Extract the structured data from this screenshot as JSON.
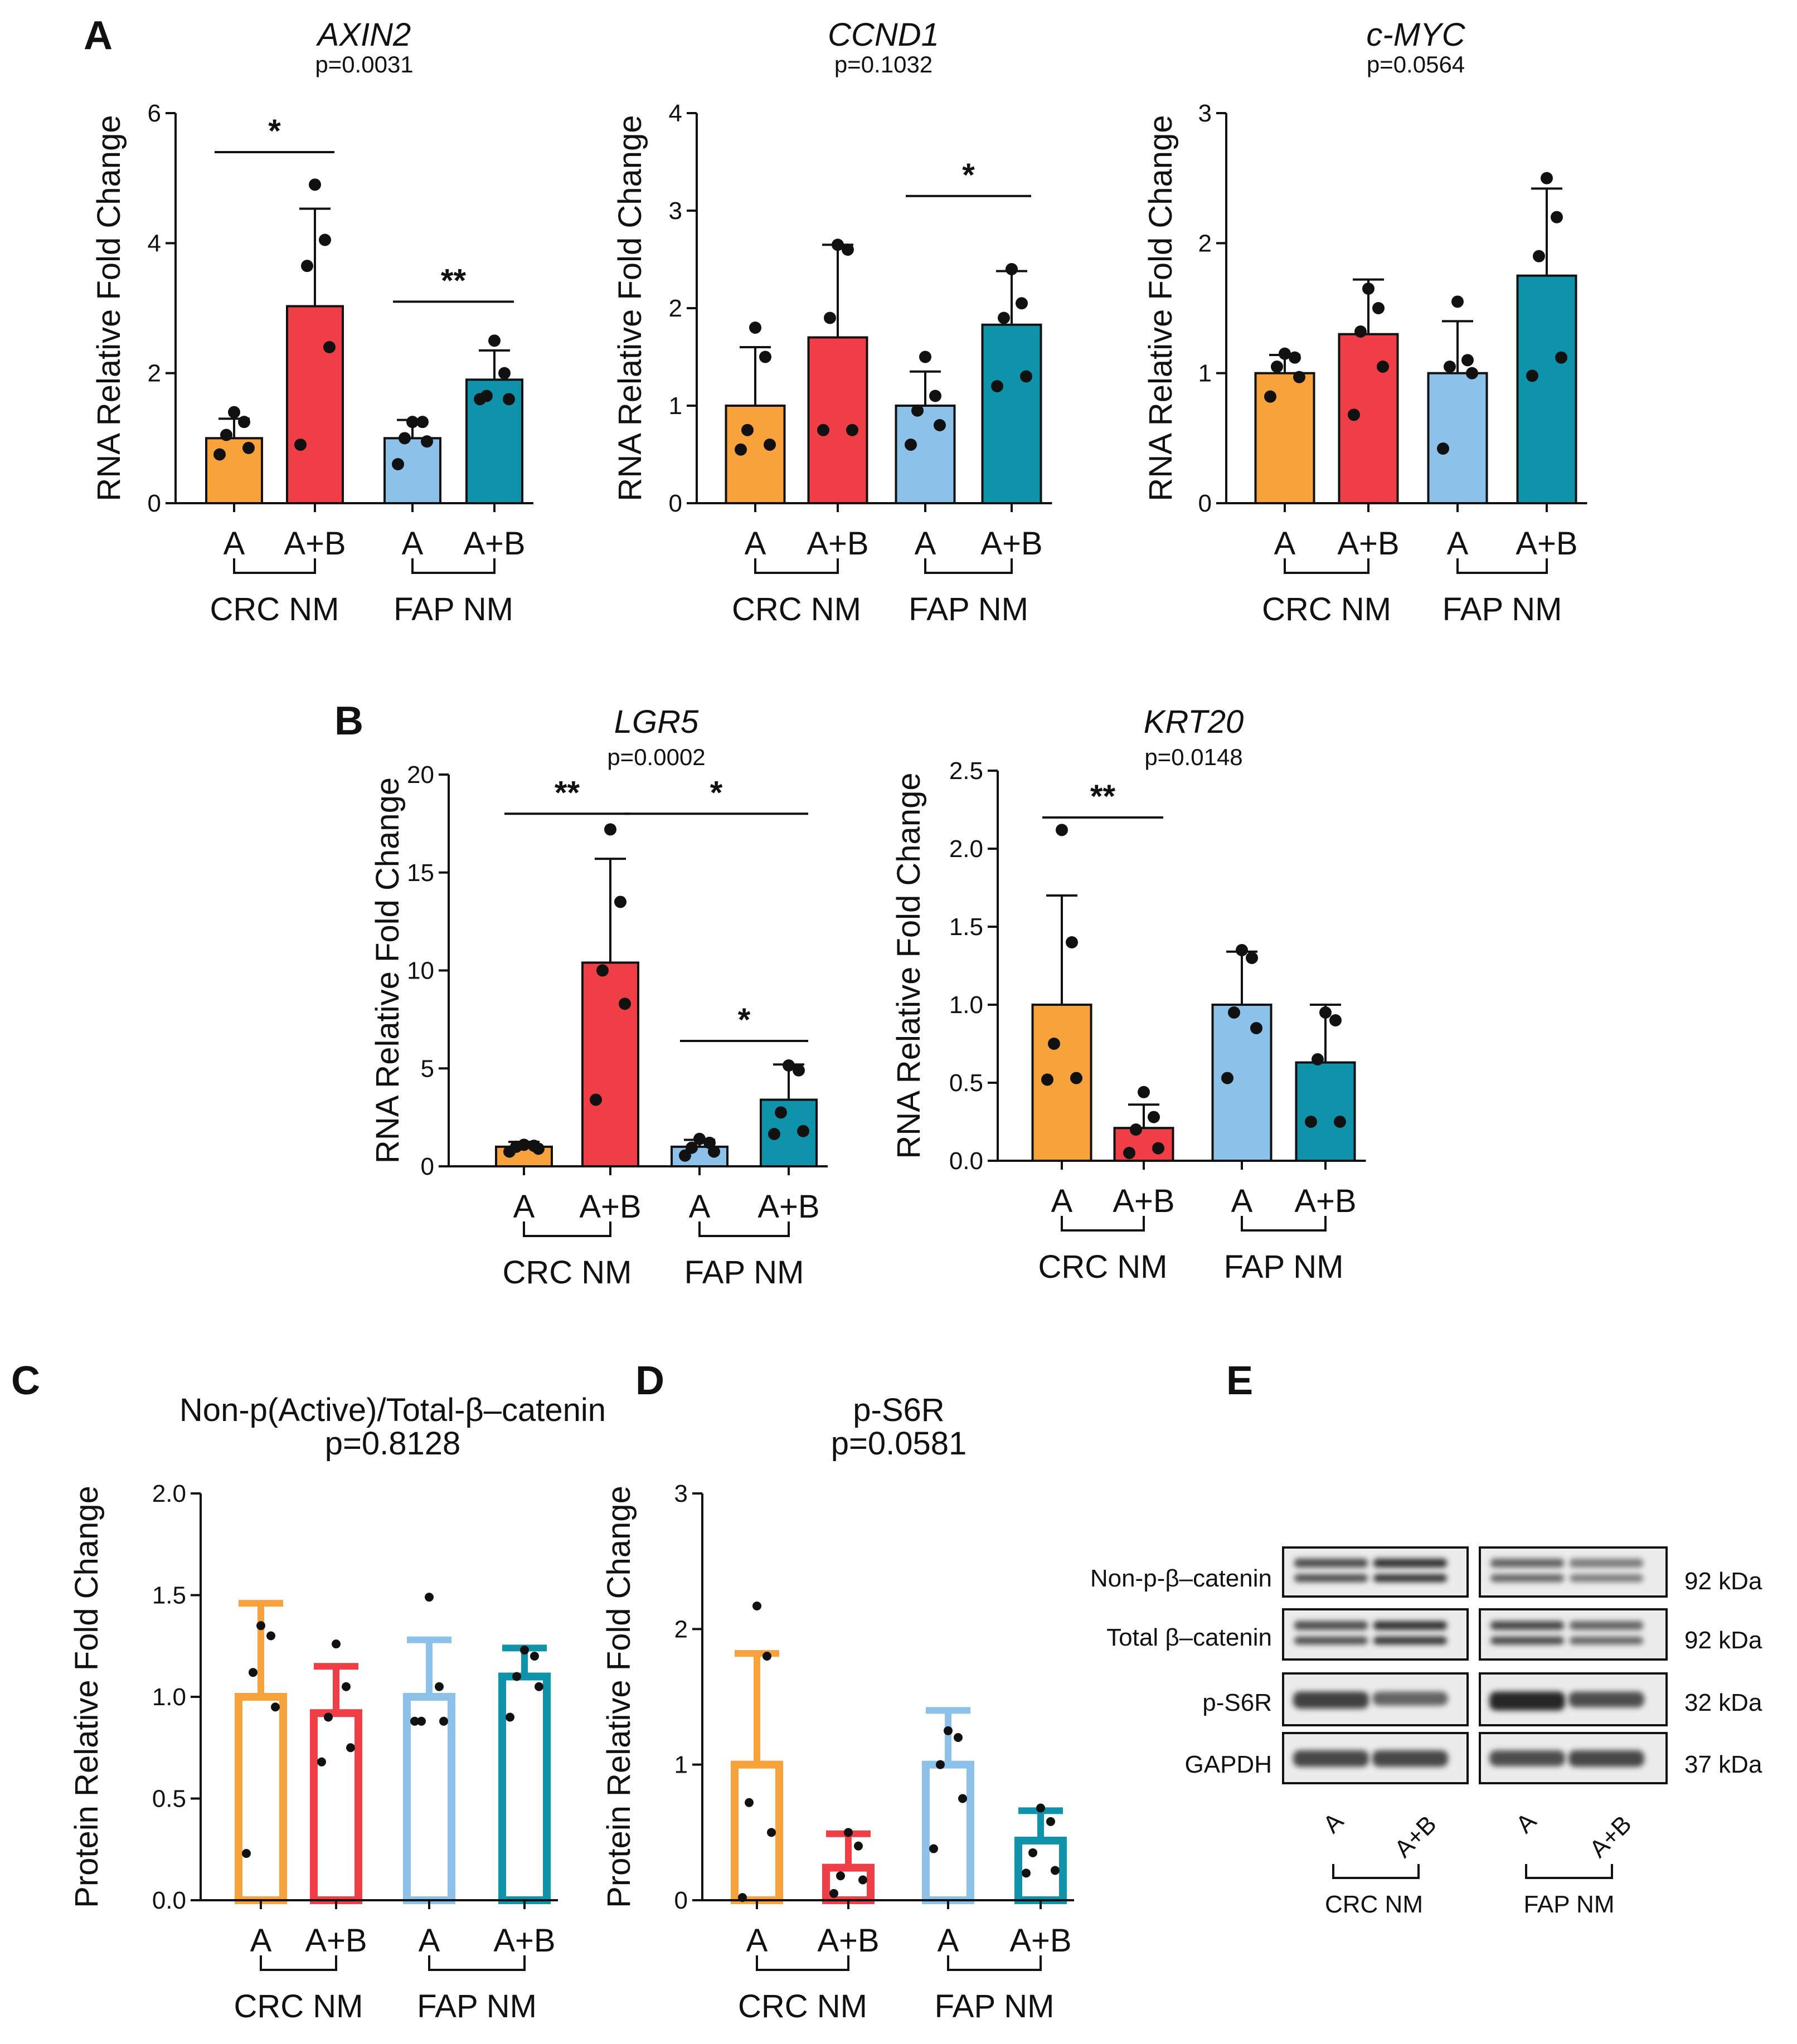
{
  "panel_letters": [
    "A",
    "B",
    "C",
    "D",
    "E"
  ],
  "colors": {
    "orange": "#F7A23B",
    "red": "#EF3E45",
    "lightblue": "#8CC2EA",
    "teal": "#0E93AA",
    "black": "#000000"
  },
  "chart_data": [
    {
      "id": "axin2",
      "type": "bar",
      "panel": "A",
      "title": "AXIN2",
      "pvalue": "p=0.0031",
      "ylabel": "RNA Relative Fold Change",
      "ylim": [
        0,
        6
      ],
      "yticks": [
        "0",
        "2",
        "4",
        "6"
      ],
      "categories": [
        "A",
        "A+B",
        "A",
        "A+B"
      ],
      "groups": [
        "CRC NM",
        "FAP NM"
      ],
      "values": [
        1.0,
        3.03,
        1.0,
        1.9
      ],
      "errors": [
        0.3,
        1.5,
        0.28,
        0.45
      ],
      "points": [
        [
          0.75,
          0.85,
          1.05,
          1.25,
          1.4
        ],
        [
          0.9,
          2.4,
          3.65,
          4.05,
          4.9
        ],
        [
          0.6,
          0.95,
          1.0,
          1.25,
          1.25
        ],
        [
          1.6,
          1.6,
          1.65,
          2.0,
          2.5
        ]
      ],
      "significance": [
        {
          "from": 0,
          "to": 1,
          "y": 5.4,
          "label": "*"
        },
        {
          "from": 2,
          "to": 3,
          "y": 3.1,
          "label": "**"
        }
      ]
    },
    {
      "id": "ccnd1",
      "type": "bar",
      "panel": "A",
      "title": "CCND1",
      "pvalue": "p=0.1032",
      "ylabel": "RNA Relative Fold Change",
      "ylim": [
        0,
        4
      ],
      "yticks": [
        "0",
        "1",
        "2",
        "3",
        "4"
      ],
      "categories": [
        "A",
        "A+B",
        "A",
        "A+B"
      ],
      "groups": [
        "CRC NM",
        "FAP NM"
      ],
      "values": [
        1.0,
        1.7,
        1.0,
        1.83
      ],
      "errors": [
        0.6,
        0.95,
        0.35,
        0.55
      ],
      "points": [
        [
          0.55,
          0.6,
          0.75,
          1.5,
          1.8
        ],
        [
          0.75,
          0.75,
          1.9,
          2.6,
          2.65
        ],
        [
          0.6,
          0.8,
          0.95,
          1.1,
          1.5
        ],
        [
          1.2,
          1.3,
          1.9,
          2.05,
          2.4
        ]
      ],
      "significance": [
        {
          "from": 2,
          "to": 3,
          "y": 3.15,
          "label": "*"
        }
      ]
    },
    {
      "id": "cmyc",
      "type": "bar",
      "panel": "A",
      "title": "c-MYC",
      "pvalue": "p=0.0564",
      "ylabel": "RNA Relative Fold Change",
      "ylim": [
        0,
        3
      ],
      "yticks": [
        "0",
        "1",
        "2",
        "3"
      ],
      "categories": [
        "A",
        "A+B",
        "A",
        "A+B"
      ],
      "groups": [
        "CRC NM",
        "FAP NM"
      ],
      "values": [
        1.0,
        1.3,
        1.0,
        1.75
      ],
      "errors": [
        0.14,
        0.42,
        0.4,
        0.67
      ],
      "points": [
        [
          0.82,
          0.97,
          1.05,
          1.12,
          1.15
        ],
        [
          0.68,
          1.05,
          1.32,
          1.5,
          1.65
        ],
        [
          0.42,
          1.0,
          1.05,
          1.1,
          1.55
        ],
        [
          0.98,
          1.12,
          1.9,
          2.2,
          2.5
        ]
      ],
      "significance": []
    },
    {
      "id": "lgr5",
      "type": "bar",
      "panel": "B",
      "title": "LGR5",
      "pvalue": "p=0.0002",
      "ylabel": "RNA Relative Fold Change",
      "ylim": [
        0,
        20
      ],
      "yticks": [
        "0",
        "5",
        "10",
        "15",
        "20"
      ],
      "categories": [
        "A",
        "A+B",
        "A",
        "A+B"
      ],
      "groups": [
        "CRC NM",
        "FAP NM"
      ],
      "values": [
        1.0,
        10.4,
        1.0,
        3.4
      ],
      "errors": [
        0.25,
        5.3,
        0.35,
        1.8
      ],
      "points": [
        [
          0.75,
          0.9,
          1.0,
          1.05,
          1.1
        ],
        [
          3.4,
          8.3,
          10.0,
          13.5,
          17.2
        ],
        [
          0.55,
          0.75,
          0.95,
          1.2,
          1.4
        ],
        [
          1.65,
          1.8,
          2.75,
          4.9,
          5.15
        ]
      ],
      "significance": [
        {
          "from": 0,
          "to": 1,
          "y": 18.0,
          "label": "**"
        },
        {
          "from": 1,
          "to": 3,
          "y": 18.0,
          "label": "*"
        },
        {
          "from": 2,
          "to": 3,
          "y": 6.4,
          "label": "*"
        }
      ]
    },
    {
      "id": "krt20",
      "type": "bar",
      "panel": "B",
      "title": "KRT20",
      "pvalue": "p=0.0148",
      "ylabel": "RNA Relative Fold Change",
      "ylim": [
        0,
        2.5
      ],
      "yticks": [
        "0.0",
        "0.5",
        "1.0",
        "1.5",
        "2.0",
        "2.5"
      ],
      "categories": [
        "A",
        "A+B",
        "A",
        "A+B"
      ],
      "groups": [
        "CRC NM",
        "FAP NM"
      ],
      "values": [
        1.0,
        0.21,
        1.0,
        0.63
      ],
      "errors": [
        0.7,
        0.15,
        0.34,
        0.37
      ],
      "points": [
        [
          0.52,
          0.53,
          0.75,
          1.4,
          2.12
        ],
        [
          0.05,
          0.08,
          0.2,
          0.28,
          0.44
        ],
        [
          0.53,
          0.85,
          0.95,
          1.3,
          1.35
        ],
        [
          0.25,
          0.25,
          0.65,
          0.9,
          0.95
        ]
      ],
      "significance": [
        {
          "from": 0,
          "to": 1,
          "y": 2.2,
          "label": "**"
        }
      ]
    },
    {
      "id": "catenin",
      "type": "bar",
      "panel": "C",
      "title": "Non-p(Active)/Total-β–catenin",
      "pvalue": "p=0.8128",
      "ylabel": "Protein Relative Fold Change",
      "ylim": [
        0,
        2.0
      ],
      "yticks": [
        "0.0",
        "0.5",
        "1.0",
        "1.5",
        "2.0"
      ],
      "categories": [
        "A",
        "A+B",
        "A",
        "A+B"
      ],
      "groups": [
        "CRC NM",
        "FAP NM"
      ],
      "values": [
        1.0,
        0.92,
        1.0,
        1.1
      ],
      "errors": [
        0.46,
        0.23,
        0.28,
        0.14
      ],
      "points": [
        [
          0.23,
          0.95,
          1.12,
          1.3,
          1.35
        ],
        [
          0.68,
          0.75,
          0.9,
          1.05,
          1.26
        ],
        [
          0.88,
          0.88,
          0.88,
          1.05,
          1.49
        ],
        [
          0.9,
          1.05,
          1.1,
          1.2,
          1.23
        ]
      ],
      "significance": []
    },
    {
      "id": "ps6r",
      "type": "bar",
      "panel": "D",
      "title": "p-S6R",
      "pvalue": "p=0.0581",
      "ylabel": "Protein Relative Fold Change",
      "ylim": [
        0,
        3
      ],
      "yticks": [
        "0",
        "1",
        "2",
        "3"
      ],
      "categories": [
        "A",
        "A+B",
        "A",
        "A+B"
      ],
      "groups": [
        "CRC NM",
        "FAP NM"
      ],
      "values": [
        1.0,
        0.24,
        1.0,
        0.44
      ],
      "errors": [
        0.82,
        0.25,
        0.4,
        0.22
      ],
      "points": [
        [
          0.02,
          0.5,
          0.72,
          1.8,
          2.17
        ],
        [
          0.05,
          0.15,
          0.18,
          0.4,
          0.5
        ],
        [
          0.38,
          0.75,
          1.0,
          1.2,
          1.25
        ],
        [
          0.2,
          0.22,
          0.35,
          0.58,
          0.68
        ]
      ],
      "significance": []
    }
  ],
  "western_blot": {
    "rows": [
      {
        "label": "Non-p-β–catenin",
        "kda": "92 kDa"
      },
      {
        "label": "Total β–catenin",
        "kda": "92 kDa"
      },
      {
        "label": "p-S6R",
        "kda": "32 kDa"
      },
      {
        "label": "GAPDH",
        "kda": "37 kDa"
      }
    ],
    "lanes": [
      "A",
      "A+B"
    ],
    "groups": [
      "CRC NM",
      "FAP NM"
    ],
    "band_intensity": [
      [
        [
          0.75,
          0.95
        ],
        [
          0.6,
          0.45
        ]
      ],
      [
        [
          0.75,
          0.95
        ],
        [
          0.8,
          0.6
        ]
      ],
      [
        [
          0.85,
          0.6
        ],
        [
          1.0,
          0.75
        ]
      ],
      [
        [
          0.8,
          0.8
        ],
        [
          0.75,
          0.8
        ]
      ]
    ]
  }
}
